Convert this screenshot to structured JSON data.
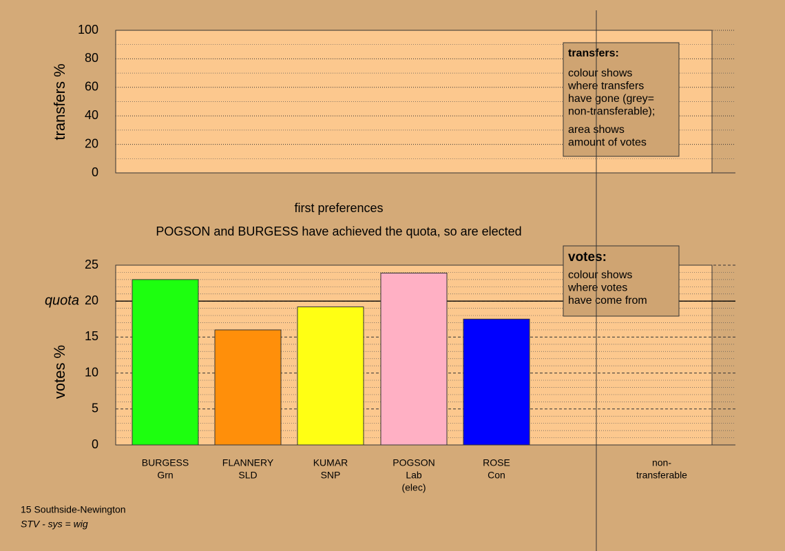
{
  "chart_data": [
    {
      "type": "bar",
      "ylabel": "transfers %",
      "ylim": [
        0,
        100
      ],
      "yticks": [
        0,
        20,
        40,
        60,
        80,
        100
      ],
      "minor_divisions": 2,
      "categories": [],
      "values": [],
      "note": {
        "title": "transfers:",
        "lines": [
          [
            "colour shows",
            "where transfers",
            "have gone (grey=",
            "non-transferable);"
          ],
          [
            "area shows",
            "amount of votes"
          ]
        ]
      }
    },
    {
      "type": "bar",
      "title": "first preferences",
      "subtitle": "POGSON and BURGESS have achieved the quota, so are elected",
      "ylabel": "votes %",
      "ylim": [
        0,
        25
      ],
      "yticks": [
        0,
        5,
        10,
        15,
        20,
        25
      ],
      "minor_divisions": 5,
      "quota": {
        "label": "quota",
        "value": 20
      },
      "categories": [
        [
          "BURGESS",
          "Grn"
        ],
        [
          "FLANNERY",
          "SLD"
        ],
        [
          "KUMAR",
          "SNP"
        ],
        [
          "POGSON",
          "Lab",
          "(elec)"
        ],
        [
          "ROSE",
          "Con"
        ],
        [
          "non-",
          "transferable"
        ]
      ],
      "values": [
        23,
        16,
        19.2,
        23.9,
        17.5,
        null
      ],
      "colors": [
        "#1dff0f",
        "#ff8f0a",
        "#ffff14",
        "#ffb0c4",
        "#0000ff",
        null
      ],
      "note": {
        "title": "votes:",
        "lines": [
          [
            "colour shows",
            "where votes",
            "have come from"
          ]
        ]
      }
    }
  ],
  "footer": {
    "constituency": "15 Southside-Newington",
    "system": "STV - sys = wig"
  }
}
